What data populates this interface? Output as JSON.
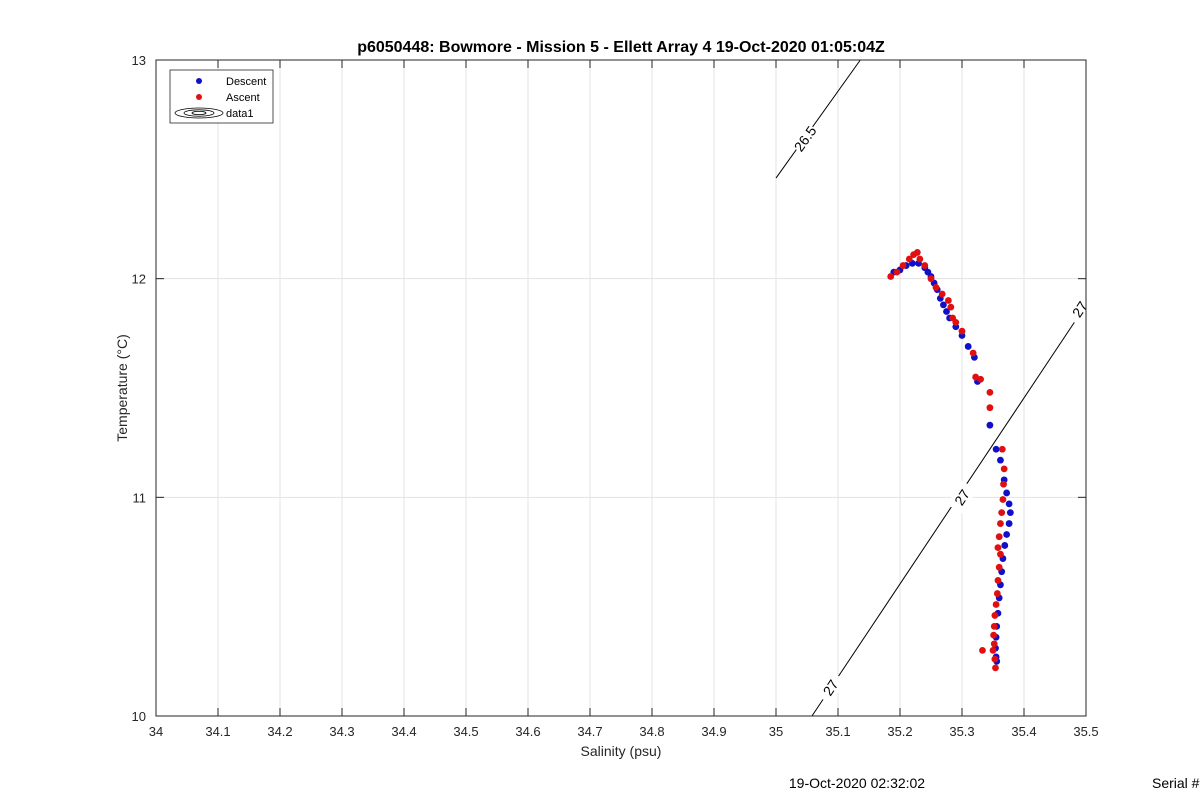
{
  "chart_data": {
    "type": "scatter",
    "title": "p6050448: Bowmore - Mission 5 - Ellett Array 4 19-Oct-2020 01:05:04Z",
    "xlabel": "Salinity (psu)",
    "ylabel": "Temperature (°C)",
    "xlim": [
      34,
      35.5
    ],
    "ylim": [
      10,
      13
    ],
    "x_ticks": [
      "34",
      "34.1",
      "34.2",
      "34.3",
      "34.4",
      "34.5",
      "34.6",
      "34.7",
      "34.8",
      "34.9",
      "35",
      "35.1",
      "35.2",
      "35.3",
      "35.4",
      "35.5"
    ],
    "y_ticks": [
      "10",
      "11",
      "12",
      "13"
    ],
    "grid": true,
    "legend_placement": "top-left",
    "legend": [
      {
        "label": "Descent",
        "marker": "dot",
        "color": "#1010c8"
      },
      {
        "label": "Ascent",
        "marker": "dot",
        "color": "#e01010"
      },
      {
        "label": "data1",
        "marker": "contour"
      }
    ],
    "contours": [
      {
        "label": "26.5",
        "points": [
          [
            35.0,
            12.46
          ],
          [
            35.136,
            13.0
          ]
        ],
        "label_at": [
          35.047,
          12.64
        ]
      },
      {
        "label": "27",
        "points": [
          [
            35.058,
            10.0
          ],
          [
            35.5,
            11.88
          ]
        ],
        "label_at": [
          35.088,
          10.13
        ],
        "label_at_2": [
          35.3,
          11.0
        ],
        "label_at_3": [
          35.49,
          11.86
        ]
      }
    ],
    "series": [
      {
        "name": "Descent",
        "color": "#1010c8",
        "points": [
          [
            35.19,
            12.03
          ],
          [
            35.2,
            12.04
          ],
          [
            35.21,
            12.06
          ],
          [
            35.22,
            12.07
          ],
          [
            35.23,
            12.07
          ],
          [
            35.24,
            12.05
          ],
          [
            35.245,
            12.03
          ],
          [
            35.25,
            12.01
          ],
          [
            35.255,
            11.98
          ],
          [
            35.26,
            11.95
          ],
          [
            35.265,
            11.91
          ],
          [
            35.27,
            11.88
          ],
          [
            35.275,
            11.85
          ],
          [
            35.28,
            11.82
          ],
          [
            35.29,
            11.78
          ],
          [
            35.3,
            11.74
          ],
          [
            35.31,
            11.69
          ],
          [
            35.32,
            11.64
          ],
          [
            35.325,
            11.53
          ],
          [
            35.345,
            11.33
          ],
          [
            35.355,
            11.22
          ],
          [
            35.362,
            11.17
          ],
          [
            35.368,
            11.08
          ],
          [
            35.372,
            11.02
          ],
          [
            35.376,
            10.97
          ],
          [
            35.378,
            10.93
          ],
          [
            35.376,
            10.88
          ],
          [
            35.372,
            10.83
          ],
          [
            35.369,
            10.78
          ],
          [
            35.366,
            10.72
          ],
          [
            35.364,
            10.66
          ],
          [
            35.362,
            10.6
          ],
          [
            35.36,
            10.54
          ],
          [
            35.358,
            10.47
          ],
          [
            35.356,
            10.41
          ],
          [
            35.355,
            10.36
          ],
          [
            35.354,
            10.31
          ],
          [
            35.355,
            10.27
          ],
          [
            35.356,
            10.25
          ]
        ]
      },
      {
        "name": "Ascent",
        "color": "#e01010",
        "points": [
          [
            35.185,
            12.01
          ],
          [
            35.195,
            12.03
          ],
          [
            35.205,
            12.06
          ],
          [
            35.215,
            12.09
          ],
          [
            35.222,
            12.11
          ],
          [
            35.228,
            12.12
          ],
          [
            35.232,
            12.09
          ],
          [
            35.24,
            12.06
          ],
          [
            35.25,
            12.0
          ],
          [
            35.258,
            11.96
          ],
          [
            35.268,
            11.93
          ],
          [
            35.278,
            11.9
          ],
          [
            35.282,
            11.87
          ],
          [
            35.285,
            11.82
          ],
          [
            35.29,
            11.8
          ],
          [
            35.3,
            11.76
          ],
          [
            35.318,
            11.66
          ],
          [
            35.322,
            11.55
          ],
          [
            35.33,
            11.54
          ],
          [
            35.345,
            11.48
          ],
          [
            35.345,
            11.41
          ],
          [
            35.365,
            11.22
          ],
          [
            35.368,
            11.13
          ],
          [
            35.367,
            11.06
          ],
          [
            35.366,
            10.99
          ],
          [
            35.364,
            10.93
          ],
          [
            35.362,
            10.88
          ],
          [
            35.36,
            10.82
          ],
          [
            35.358,
            10.77
          ],
          [
            35.362,
            10.74
          ],
          [
            35.36,
            10.68
          ],
          [
            35.358,
            10.62
          ],
          [
            35.357,
            10.56
          ],
          [
            35.355,
            10.51
          ],
          [
            35.353,
            10.46
          ],
          [
            35.352,
            10.41
          ],
          [
            35.351,
            10.37
          ],
          [
            35.352,
            10.33
          ],
          [
            35.35,
            10.3
          ],
          [
            35.333,
            10.3
          ],
          [
            35.353,
            10.26
          ],
          [
            35.354,
            10.22
          ]
        ]
      }
    ]
  },
  "footer": {
    "timestamp": "19-Oct-2020 02:32:02",
    "serial": "Serial #"
  }
}
